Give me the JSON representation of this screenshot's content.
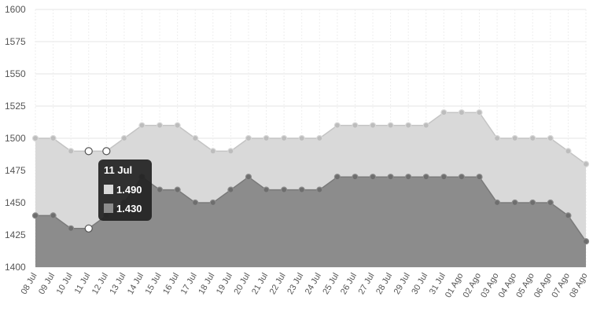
{
  "chart_data": {
    "type": "area",
    "title": "",
    "xlabel": "",
    "ylabel": "",
    "ylim": [
      1400,
      1600
    ],
    "yticks": [
      "1600",
      "1575",
      "1550",
      "1525",
      "1500",
      "1475",
      "1450",
      "1425",
      "1400"
    ],
    "grid": true,
    "categories": [
      "08 Jul",
      "09 Jul",
      "10 Jul",
      "11 Jul",
      "12 Jul",
      "13 Jul",
      "14 Jul",
      "15 Jul",
      "16 Jul",
      "17 Jul",
      "18 Jul",
      "19 Jul",
      "20 Jul",
      "21 Jul",
      "22 Jul",
      "23 Jul",
      "24 Jul",
      "25 Jul",
      "26 Jul",
      "27 Jul",
      "28 Jul",
      "29 Jul",
      "30 Jul",
      "31 Jul",
      "01 Ago",
      "02 Ago",
      "03 Ago",
      "04 Ago",
      "05 Ago",
      "06 Ago",
      "07 Ago",
      "08 Ago"
    ],
    "series": [
      {
        "color": "#d9d9d9",
        "values": [
          1500,
          1500,
          1490,
          1490,
          1490,
          1500,
          1510,
          1510,
          1510,
          1500,
          1490,
          1490,
          1500,
          1500,
          1500,
          1500,
          1500,
          1510,
          1510,
          1510,
          1510,
          1510,
          1510,
          1520,
          1520,
          1520,
          1500,
          1500,
          1500,
          1500,
          1490,
          1480
        ]
      },
      {
        "color": "#8c8c8c",
        "values": [
          1440,
          1440,
          1430,
          1430,
          1440,
          1450,
          1470,
          1460,
          1460,
          1450,
          1450,
          1460,
          1470,
          1460,
          1460,
          1460,
          1460,
          1470,
          1470,
          1470,
          1470,
          1470,
          1470,
          1470,
          1470,
          1470,
          1450,
          1450,
          1450,
          1450,
          1440,
          1420
        ]
      }
    ],
    "tooltip": {
      "title": "11 Jul",
      "items": [
        {
          "color": "#d9d9d9",
          "value": "1.490"
        },
        {
          "color": "#8c8c8c",
          "value": "1.430"
        }
      ]
    }
  }
}
